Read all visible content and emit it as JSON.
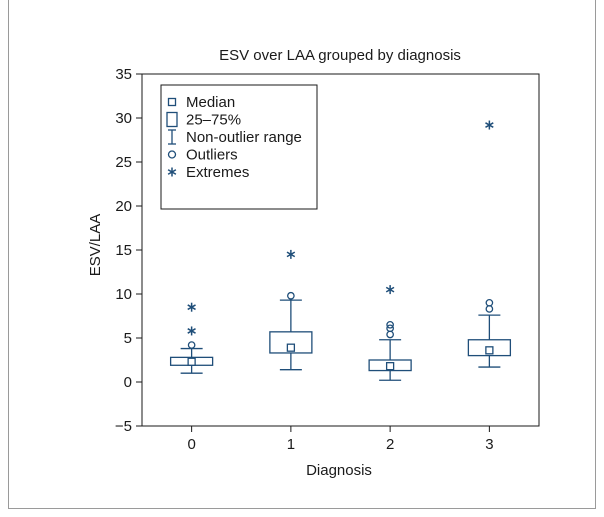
{
  "chart_data": {
    "type": "boxplot",
    "title": "ESV over LAA grouped by diagnosis",
    "xlabel": "Diagnosis",
    "ylabel": "ESV/LAA",
    "ylim": [
      -5,
      35
    ],
    "yticks": [
      -5,
      0,
      5,
      10,
      15,
      20,
      25,
      30,
      35
    ],
    "categories": [
      "0",
      "1",
      "2",
      "3"
    ],
    "grid": false,
    "legend_position": "top-left",
    "color": "#1f4e79",
    "legend": [
      {
        "symbol": "square",
        "label": "Median"
      },
      {
        "symbol": "box",
        "label": "25–75%"
      },
      {
        "symbol": "whisker",
        "label": "Non-outlier range"
      },
      {
        "symbol": "circle",
        "label": "Outliers"
      },
      {
        "symbol": "asterisk",
        "label": "Extremes"
      }
    ],
    "groups": [
      {
        "category": "0",
        "median": 2.3,
        "q1": 1.9,
        "q3": 2.8,
        "whisker_low": 1.0,
        "whisker_high": 3.8,
        "outliers": [
          4.2
        ],
        "extremes": [
          5.8,
          8.5
        ]
      },
      {
        "category": "1",
        "median": 3.9,
        "q1": 3.3,
        "q3": 5.7,
        "whisker_low": 1.4,
        "whisker_high": 9.3,
        "outliers": [
          9.8
        ],
        "extremes": [
          14.5
        ]
      },
      {
        "category": "2",
        "median": 1.8,
        "q1": 1.3,
        "q3": 2.5,
        "whisker_low": 0.2,
        "whisker_high": 4.8,
        "outliers": [
          5.4,
          6.1,
          6.5
        ],
        "extremes": [
          10.5
        ]
      },
      {
        "category": "3",
        "median": 3.6,
        "q1": 3.0,
        "q3": 4.8,
        "whisker_low": 1.7,
        "whisker_high": 7.6,
        "outliers": [
          8.3,
          9.0
        ],
        "extremes": [
          29.2
        ]
      }
    ]
  }
}
